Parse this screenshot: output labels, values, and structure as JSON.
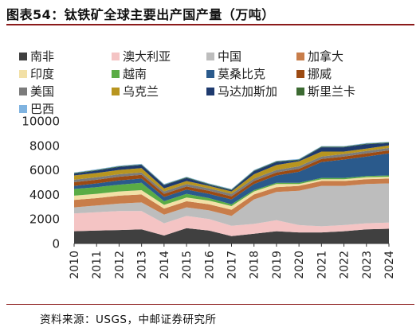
{
  "title": "图表54：钛铁矿全球主要出产国产量（万吨）",
  "source": "资料来源：USGS，中邮证券研究所",
  "chart_data": {
    "type": "area",
    "stacked": true,
    "x": [
      "2010",
      "2011",
      "2012",
      "2013",
      "2014",
      "2015",
      "2016",
      "2017",
      "2018",
      "2019",
      "2020",
      "2021",
      "2022",
      "2023",
      "2024"
    ],
    "ylim": [
      0,
      10000
    ],
    "yticks": [
      "0",
      "2000",
      "4000",
      "6000",
      "8000",
      "10000"
    ],
    "legend_position": "top",
    "grid": false,
    "series": [
      {
        "name": "南非",
        "color": "#404040",
        "values": [
          1000,
          1050,
          1100,
          1150,
          650,
          1250,
          1050,
          600,
          800,
          1000,
          900,
          900,
          1000,
          1150,
          1200
        ]
      },
      {
        "name": "澳大利亚",
        "color": "#f4c4c4",
        "values": [
          1450,
          1500,
          1550,
          1500,
          1000,
          1000,
          950,
          850,
          800,
          900,
          600,
          500,
          500,
          500,
          500
        ]
      },
      {
        "name": "中国",
        "color": "#bdbdbd",
        "values": [
          500,
          550,
          600,
          700,
          700,
          700,
          700,
          800,
          2000,
          2300,
          2800,
          3300,
          3200,
          3200,
          3200
        ]
      },
      {
        "name": "加拿大",
        "color": "#c87d4a",
        "values": [
          600,
          600,
          650,
          650,
          500,
          500,
          500,
          500,
          400,
          400,
          400,
          400,
          400,
          400,
          400
        ]
      },
      {
        "name": "印度",
        "color": "#f2e0a6",
        "values": [
          350,
          350,
          350,
          350,
          300,
          300,
          300,
          300,
          250,
          250,
          150,
          150,
          150,
          150,
          150
        ]
      },
      {
        "name": "越南",
        "color": "#5aac45",
        "values": [
          550,
          550,
          550,
          600,
          300,
          300,
          200,
          150,
          100,
          100,
          100,
          100,
          100,
          100,
          100
        ]
      },
      {
        "name": "莫桑比克",
        "color": "#2a5a8c",
        "values": [
          250,
          300,
          350,
          350,
          350,
          350,
          350,
          400,
          500,
          600,
          900,
          1300,
          1500,
          1600,
          1800
        ]
      },
      {
        "name": "挪威",
        "color": "#9c4a12",
        "values": [
          300,
          300,
          300,
          300,
          250,
          250,
          250,
          250,
          250,
          250,
          250,
          250,
          250,
          250,
          250
        ]
      },
      {
        "name": "美国",
        "color": "#7b7b7b",
        "values": [
          200,
          200,
          200,
          200,
          200,
          200,
          200,
          200,
          200,
          200,
          200,
          200,
          200,
          200,
          200
        ]
      },
      {
        "name": "乌克兰",
        "color": "#b8951f",
        "values": [
          350,
          350,
          350,
          350,
          250,
          250,
          200,
          200,
          350,
          400,
          400,
          400,
          200,
          200,
          200
        ]
      },
      {
        "name": "马达加斯加",
        "color": "#1e3a6e",
        "values": [
          150,
          200,
          250,
          250,
          250,
          250,
          100,
          100,
          250,
          250,
          100,
          350,
          350,
          350,
          200
        ]
      },
      {
        "name": "斯里兰卡",
        "color": "#3c6a32",
        "values": [
          50,
          50,
          50,
          50,
          50,
          50,
          50,
          50,
          50,
          50,
          50,
          50,
          50,
          50,
          50
        ]
      },
      {
        "name": "巴西",
        "color": "#7fb3e0",
        "values": [
          50,
          50,
          50,
          50,
          50,
          50,
          50,
          50,
          50,
          50,
          50,
          50,
          50,
          50,
          50
        ]
      }
    ]
  }
}
